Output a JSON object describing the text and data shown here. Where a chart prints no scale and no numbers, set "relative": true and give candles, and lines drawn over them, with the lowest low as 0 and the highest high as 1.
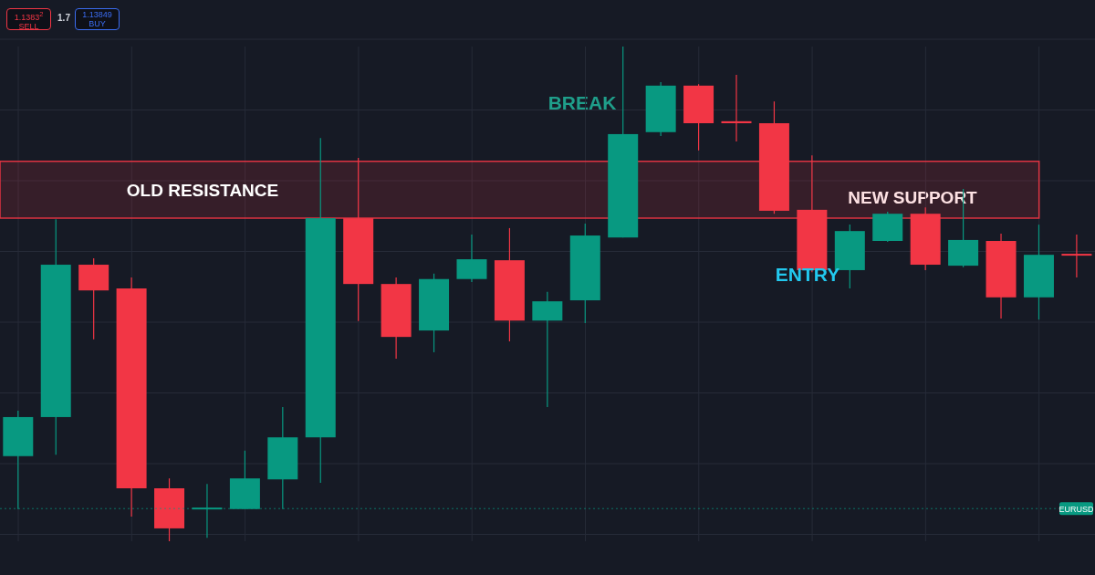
{
  "chart_data": {
    "type": "candlestick",
    "relative": true,
    "grid": true,
    "categories": [
      null,
      null,
      null,
      null,
      null,
      null,
      null,
      null,
      null,
      null,
      null,
      null,
      null,
      null,
      null,
      null,
      null,
      null,
      null,
      null,
      null,
      null,
      null,
      null,
      null,
      null,
      null,
      null,
      null
    ],
    "ohlc": [
      [
        0.172,
        0.264,
        0.065,
        0.251
      ],
      [
        0.251,
        0.651,
        0.175,
        0.559
      ],
      [
        0.559,
        0.572,
        0.408,
        0.507
      ],
      [
        0.511,
        0.533,
        0.05,
        0.107
      ],
      [
        0.107,
        0.127,
        0,
        0.026
      ],
      [
        0.065,
        0.116,
        0.007,
        0.068
      ],
      [
        0.065,
        0.183,
        0.065,
        0.127
      ],
      [
        0.125,
        0.271,
        0.065,
        0.21
      ],
      [
        0.21,
        0.815,
        0.118,
        0.653
      ],
      [
        0.653,
        0.775,
        0.445,
        0.52
      ],
      [
        0.52,
        0.533,
        0.369,
        0.413
      ],
      [
        0.426,
        0.541,
        0.382,
        0.53
      ],
      [
        0.53,
        0.62,
        0.524,
        0.57
      ],
      [
        0.568,
        0.633,
        0.404,
        0.446
      ],
      [
        0.446,
        0.504,
        0.271,
        0.485
      ],
      [
        0.487,
        0.642,
        0.441,
        0.618
      ],
      [
        0.614,
        1,
        0.614,
        0.823
      ],
      [
        0.827,
        0.928,
        0.819,
        0.921
      ],
      [
        0.921,
        0.924,
        0.79,
        0.845
      ],
      [
        0.849,
        0.943,
        0.808,
        0.845
      ],
      [
        0.845,
        0.889,
        0.662,
        0.668
      ],
      [
        0.67,
        0.78,
        0.544,
        0.548
      ],
      [
        0.548,
        0.64,
        0.511,
        0.627
      ],
      [
        0.607,
        0.666,
        0.605,
        0.662
      ],
      [
        0.662,
        0.675,
        0.548,
        0.559
      ],
      [
        0.557,
        0.712,
        0.554,
        0.609
      ],
      [
        0.607,
        0.622,
        0.45,
        0.493
      ],
      [
        0.493,
        0.64,
        0.448,
        0.579
      ],
      [
        0.581,
        0.62,
        0.533,
        0.579
      ]
    ],
    "colors": [
      "#089981",
      "#089981",
      "#f23645",
      "#f23645",
      "#f23645",
      "#089981",
      "#089981",
      "#089981",
      "#089981",
      "#f23645",
      "#f23645",
      "#089981",
      "#089981",
      "#f23645",
      "#089981",
      "#089981",
      "#089981",
      "#089981",
      "#f23645",
      "#f23645",
      "#f23645",
      "#f23645",
      "#089981",
      "#089981",
      "#f23645",
      "#089981",
      "#f23645",
      "#089981",
      "#f23645"
    ],
    "bands": [
      {
        "axis": "y",
        "from": 0.653,
        "to": 0.768,
        "label": "OLD RESISTANCE",
        "color": "#f23645"
      }
    ],
    "ref_lines": [
      {
        "axis": "y",
        "value": 0.066,
        "label": "EURUSD",
        "color": "#089981",
        "line_style": "dotted"
      }
    ],
    "annotations": [
      "1.1383$^{2}$",
      "SELL",
      "1.7",
      "1.13849",
      "BUY",
      "BREAK",
      "NEW SUPPORT",
      "ENTRY"
    ]
  }
}
